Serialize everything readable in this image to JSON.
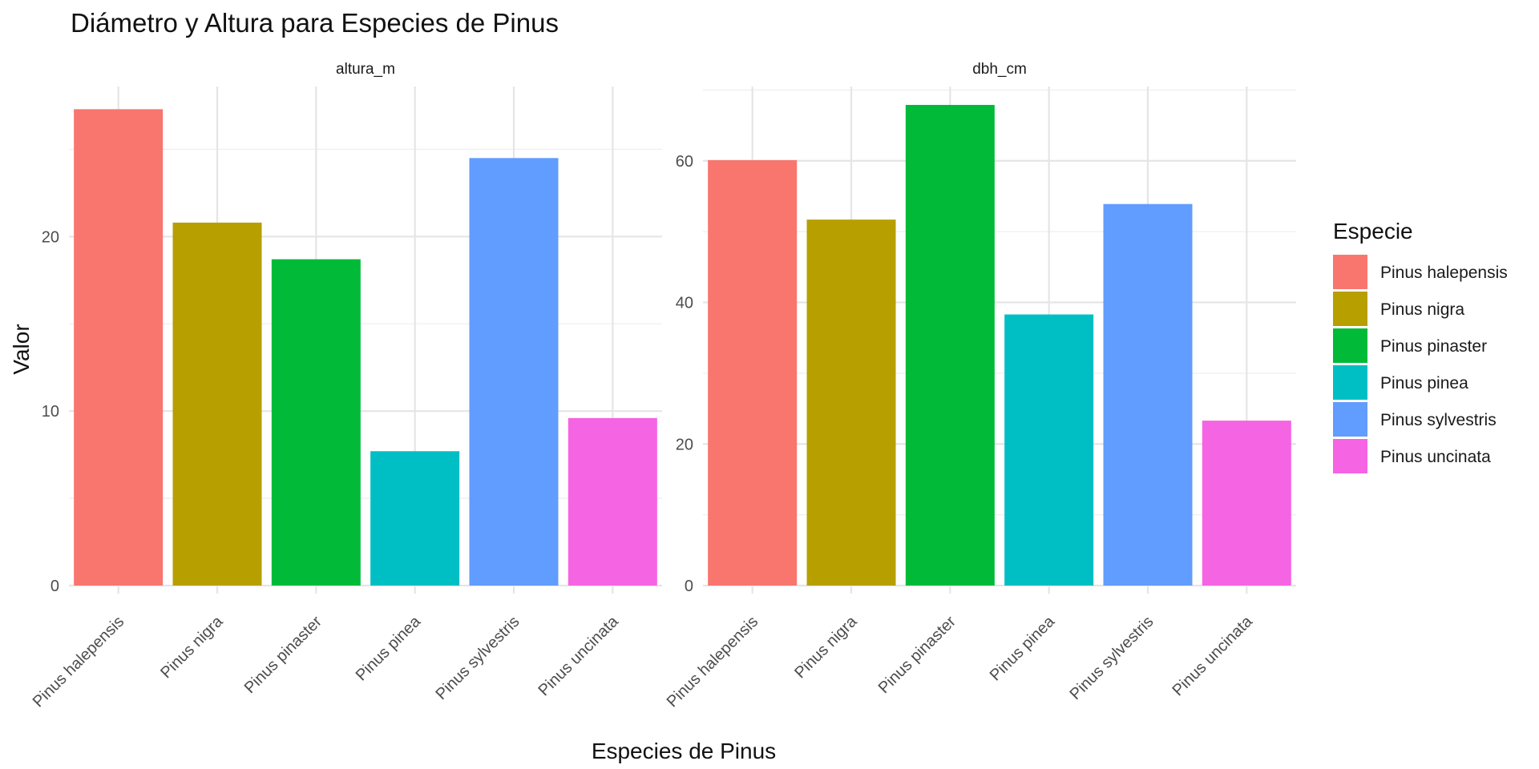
{
  "chart_data": {
    "type": "bar",
    "title": "Diámetro y Altura para Especies de Pinus",
    "xlabel": "Especies de Pinus",
    "ylabel": "Valor",
    "categories": [
      "Pinus halepensis",
      "Pinus nigra",
      "Pinus pinaster",
      "Pinus pinea",
      "Pinus sylvestris",
      "Pinus uncinata"
    ],
    "colors": [
      "#F8766D",
      "#B79F00",
      "#00BA38",
      "#00BFC4",
      "#619CFF",
      "#F564E3"
    ],
    "legend": {
      "title": "Especie",
      "position": "right",
      "entries": [
        "Pinus halepensis",
        "Pinus nigra",
        "Pinus pinaster",
        "Pinus pinea",
        "Pinus sylvestris",
        "Pinus uncinata"
      ]
    },
    "grid": true,
    "facets": [
      {
        "name": "altura_m",
        "values": [
          27.3,
          20.8,
          18.7,
          7.7,
          24.5,
          9.6
        ],
        "ylim": [
          0,
          28.6
        ],
        "yticks": [
          0,
          10,
          20
        ]
      },
      {
        "name": "dbh_cm",
        "values": [
          60.1,
          51.7,
          67.9,
          38.3,
          53.9,
          23.3
        ],
        "ylim": [
          0,
          70.5
        ],
        "yticks": [
          0,
          20,
          40,
          60
        ]
      }
    ]
  }
}
